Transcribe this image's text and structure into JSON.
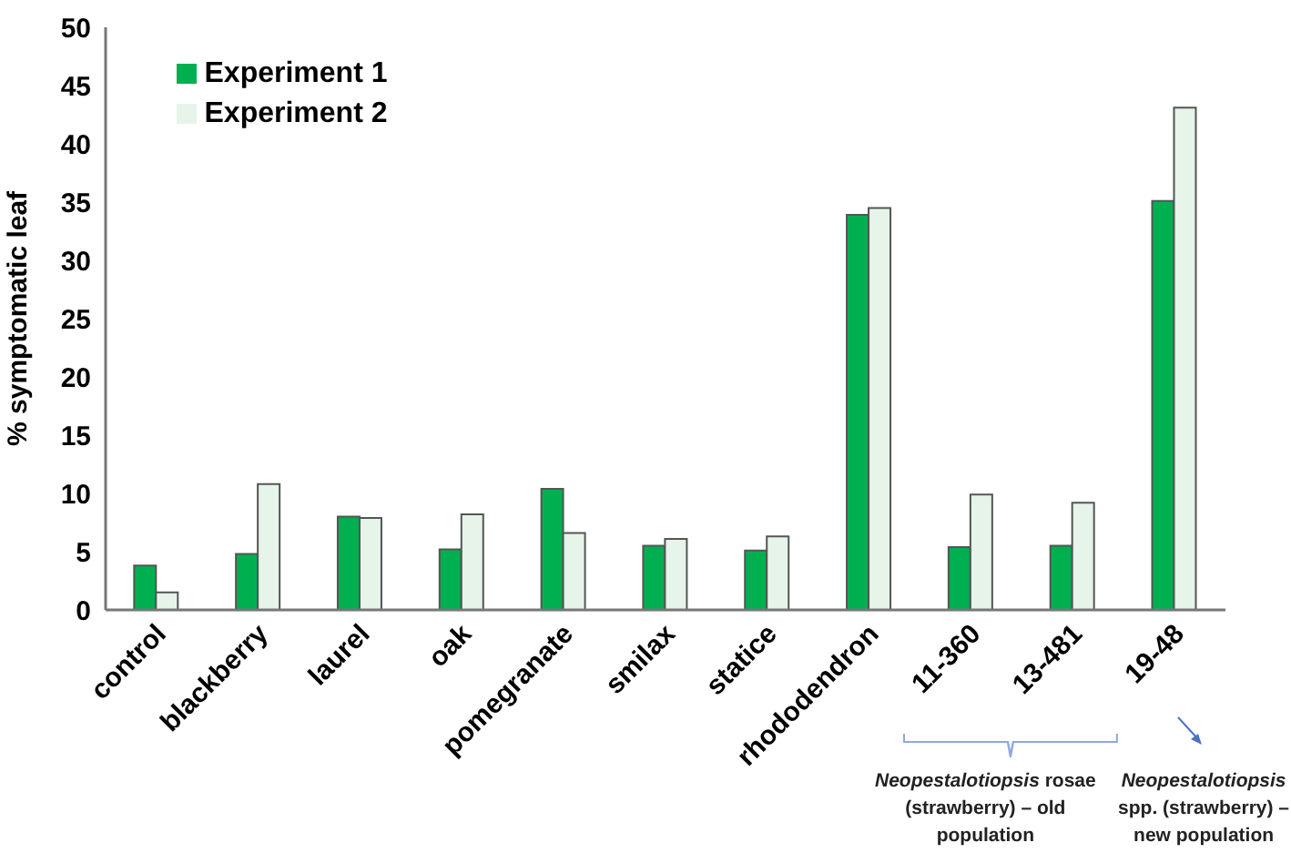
{
  "chart_data": {
    "type": "bar",
    "ylabel": "% symptomatic leaf",
    "categories": [
      "control",
      "blackberry",
      "laurel",
      "oak",
      "pomegranate",
      "smilax",
      "statice",
      "rhododendron",
      "11-360",
      "13-481",
      "19-48"
    ],
    "series": [
      {
        "name": "Experiment 1",
        "color": "#00b050",
        "values": [
          3.8,
          4.8,
          8.0,
          5.2,
          10.4,
          5.5,
          5.1,
          33.9,
          5.4,
          5.5,
          35.1
        ]
      },
      {
        "name": "Experiment 2",
        "color": "#e6f4ea",
        "values": [
          1.5,
          10.8,
          7.9,
          8.2,
          6.6,
          6.1,
          6.3,
          34.5,
          9.9,
          9.2,
          43.1
        ]
      }
    ],
    "ylim": [
      0,
      50
    ],
    "yticks": [
      0,
      5,
      10,
      15,
      20,
      25,
      30,
      35,
      40,
      45,
      50
    ],
    "grid": false,
    "legend": "top left",
    "annotations": [
      "Neopestalotiopsis rosae (strawberry) – old population",
      "Neopestalotiopsis spp. (strawberry) – new population"
    ]
  }
}
